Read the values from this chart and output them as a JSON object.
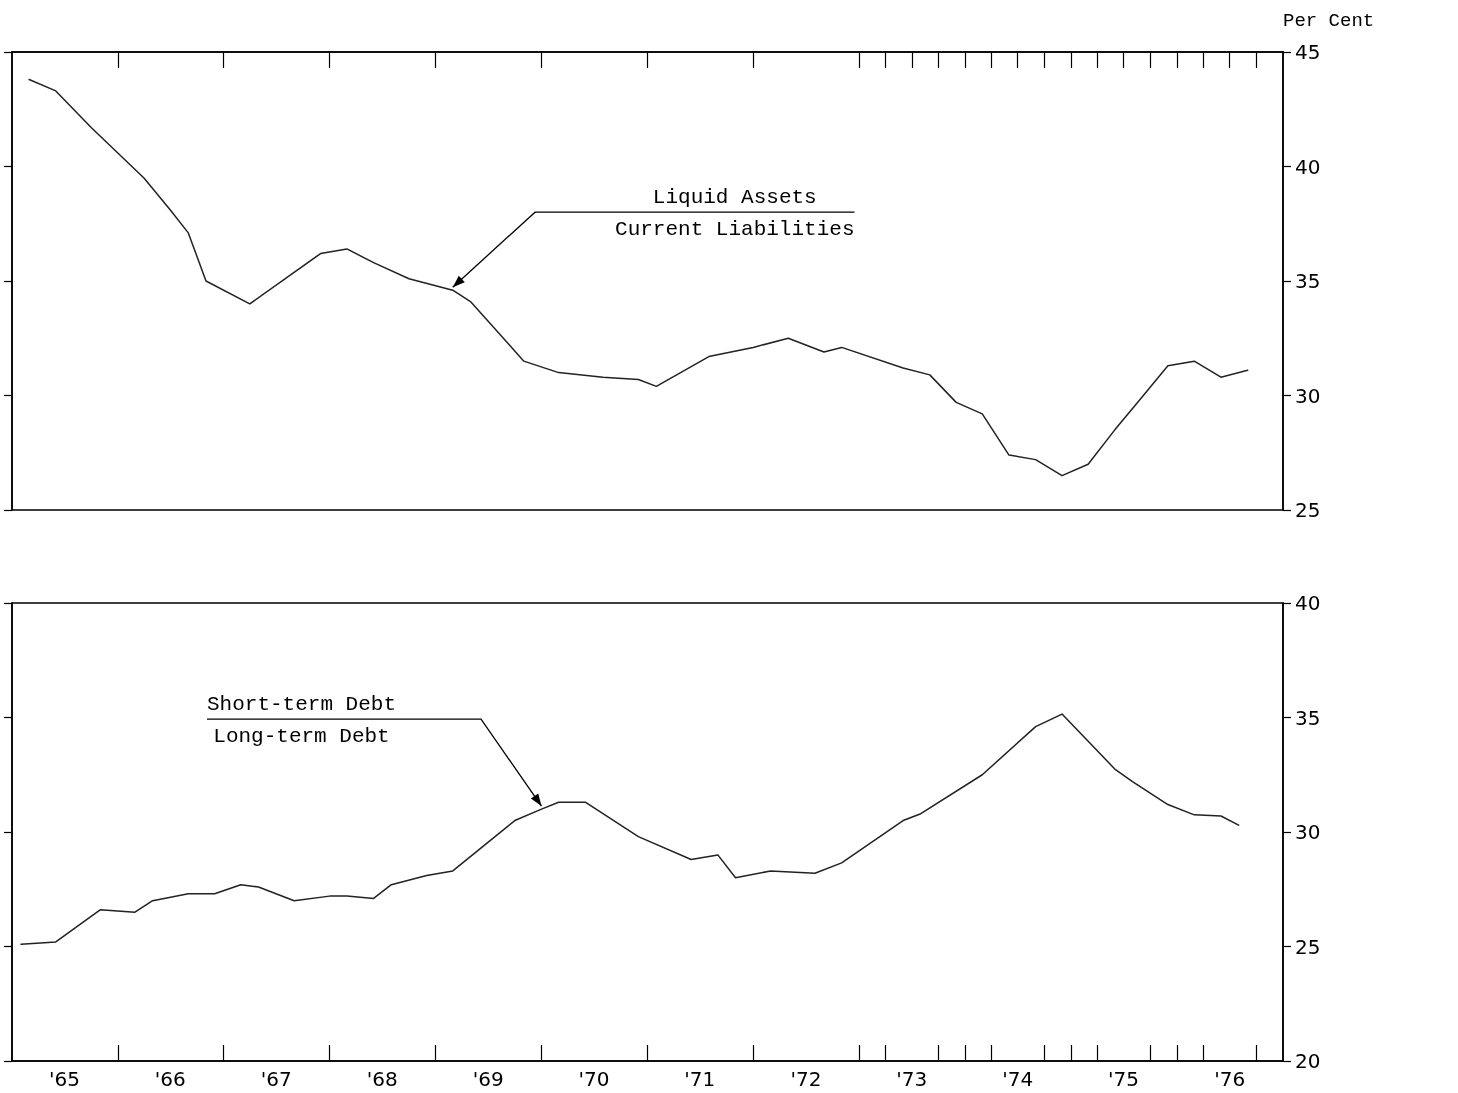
{
  "chart_data": [
    {
      "type": "line",
      "ylabel": "Per Cent",
      "xlim": [
        "1965-01",
        "1977-01"
      ],
      "xticks": [
        {
          "value": "1966-01",
          "label": null
        },
        {
          "value": "1967-01",
          "label": null
        },
        {
          "value": "1968-01",
          "label": null
        },
        {
          "value": "1969-01",
          "label": null
        },
        {
          "value": "1970-01",
          "label": null
        },
        {
          "value": "1971-01",
          "label": null
        },
        {
          "value": "1972-01",
          "label": null
        },
        {
          "value": "1973-01",
          "label": null
        },
        {
          "value": "1973-04",
          "label": null
        },
        {
          "value": "1973-07",
          "label": null
        },
        {
          "value": "1973-10",
          "label": null
        },
        {
          "value": "1974-01",
          "label": null
        },
        {
          "value": "1974-04",
          "label": null
        },
        {
          "value": "1974-07",
          "label": null
        },
        {
          "value": "1974-10",
          "label": null
        },
        {
          "value": "1975-01",
          "label": null
        },
        {
          "value": "1975-04",
          "label": null
        },
        {
          "value": "1975-07",
          "label": null
        },
        {
          "value": "1975-10",
          "label": null
        },
        {
          "value": "1976-01",
          "label": null
        },
        {
          "value": "1976-04",
          "label": null
        },
        {
          "value": "1976-07",
          "label": null
        },
        {
          "value": "1976-10",
          "label": null
        }
      ],
      "ylim": [
        25,
        45
      ],
      "yticks": [
        25,
        30,
        35,
        40,
        45
      ],
      "tick_labels": "y",
      "marker": "none",
      "line_style": "solid",
      "x": [
        "1965-03",
        "1965-06",
        "1965-10",
        "1966-04",
        "1966-07",
        "1966-09",
        "1966-11",
        "1967-04",
        "1967-12",
        "1968-03",
        "1968-06",
        "1968-10",
        "1969-03",
        "1969-05",
        "1969-11",
        "1970-03",
        "1970-08",
        "1970-12",
        "1971-02",
        "1971-08",
        "1972-01",
        "1972-05",
        "1972-09",
        "1972-11",
        "1973-06",
        "1973-09",
        "1973-12",
        "1974-03",
        "1974-06",
        "1974-09",
        "1974-12",
        "1975-03",
        "1975-06",
        "1975-09",
        "1975-12",
        "1976-03",
        "1976-06",
        "1976-09"
      ],
      "series": [
        {
          "color": "#222222",
          "values": [
            43.8,
            43.3,
            41.7,
            39.5,
            38.1,
            37.1,
            35.0,
            34.0,
            36.2,
            36.4,
            35.8,
            35.1,
            34.6,
            34.1,
            31.5,
            31.0,
            30.8,
            30.7,
            30.4,
            31.7,
            32.1,
            32.5,
            31.9,
            32.1,
            31.2,
            30.9,
            29.7,
            29.2,
            27.4,
            27.2,
            26.5,
            27.0,
            28.5,
            29.9,
            31.3,
            31.5,
            30.8,
            31.1
          ]
        }
      ],
      "annotations": [
        {
          "text": "Liquid Assets\nCurrent Liabilities",
          "x": "1969-03",
          "y": 34.6
        }
      ]
    },
    {
      "type": "line",
      "xlim": [
        "1965-01",
        "1977-01"
      ],
      "xticks": [
        {
          "value": "1965-07",
          "label": "'65"
        },
        {
          "value": "1966-01",
          "label": null
        },
        {
          "value": "1966-07",
          "label": "'66"
        },
        {
          "value": "1967-01",
          "label": null
        },
        {
          "value": "1967-07",
          "label": "'67"
        },
        {
          "value": "1968-01",
          "label": null
        },
        {
          "value": "1968-07",
          "label": "'68"
        },
        {
          "value": "1969-01",
          "label": null
        },
        {
          "value": "1969-07",
          "label": "'69"
        },
        {
          "value": "1970-01",
          "label": null
        },
        {
          "value": "1970-07",
          "label": "'70"
        },
        {
          "value": "1971-01",
          "label": null
        },
        {
          "value": "1971-07",
          "label": "'71"
        },
        {
          "value": "1972-01",
          "label": null
        },
        {
          "value": "1972-07",
          "label": "'72"
        },
        {
          "value": "1973-01",
          "label": null
        },
        {
          "value": "1973-04",
          "label": null
        },
        {
          "value": "1973-07",
          "label": "'73"
        },
        {
          "value": "1973-10",
          "label": null
        },
        {
          "value": "1974-01",
          "label": null
        },
        {
          "value": "1974-04",
          "label": null
        },
        {
          "value": "1974-07",
          "label": "'74"
        },
        {
          "value": "1974-10",
          "label": null
        },
        {
          "value": "1975-01",
          "label": null
        },
        {
          "value": "1975-04",
          "label": null
        },
        {
          "value": "1975-07",
          "label": "'75"
        },
        {
          "value": "1975-10",
          "label": null
        },
        {
          "value": "1976-01",
          "label": null
        },
        {
          "value": "1976-04",
          "label": null
        },
        {
          "value": "1976-07",
          "label": "'76"
        },
        {
          "value": "1976-10",
          "label": null
        }
      ],
      "ylim": [
        20,
        40
      ],
      "yticks": [
        20,
        25,
        30,
        35,
        40
      ],
      "marker": "none",
      "line_style": "solid",
      "x": [
        "1965-02",
        "1965-06",
        "1965-11",
        "1966-03",
        "1966-05",
        "1966-09",
        "1966-12",
        "1967-03",
        "1967-05",
        "1967-09",
        "1968-01",
        "1968-03",
        "1968-06",
        "1968-08",
        "1968-12",
        "1969-03",
        "1969-10",
        "1970-01",
        "1970-03",
        "1970-06",
        "1970-10",
        "1970-12",
        "1971-06",
        "1971-09",
        "1971-11",
        "1972-03",
        "1972-08",
        "1972-11",
        "1973-06",
        "1973-08",
        "1974-03",
        "1974-09",
        "1974-12",
        "1975-06",
        "1975-08",
        "1975-12",
        "1976-03",
        "1976-06",
        "1976-08"
      ],
      "series": [
        {
          "color": "#222222",
          "values": [
            25.1,
            25.2,
            26.6,
            26.5,
            27.0,
            27.3,
            27.3,
            27.7,
            27.6,
            27.0,
            27.2,
            27.2,
            27.1,
            27.7,
            28.1,
            28.3,
            30.5,
            31.0,
            31.3,
            31.3,
            30.3,
            29.8,
            28.8,
            29.0,
            28.0,
            28.3,
            28.2,
            28.65,
            30.5,
            30.8,
            32.5,
            34.6,
            35.15,
            32.75,
            32.2,
            31.2,
            30.75,
            30.7,
            30.3
          ]
        }
      ],
      "annotations": [
        {
          "text": "Short-term Debt\nLong-term Debt",
          "x": "1970-01",
          "y": 31.0
        }
      ]
    }
  ]
}
